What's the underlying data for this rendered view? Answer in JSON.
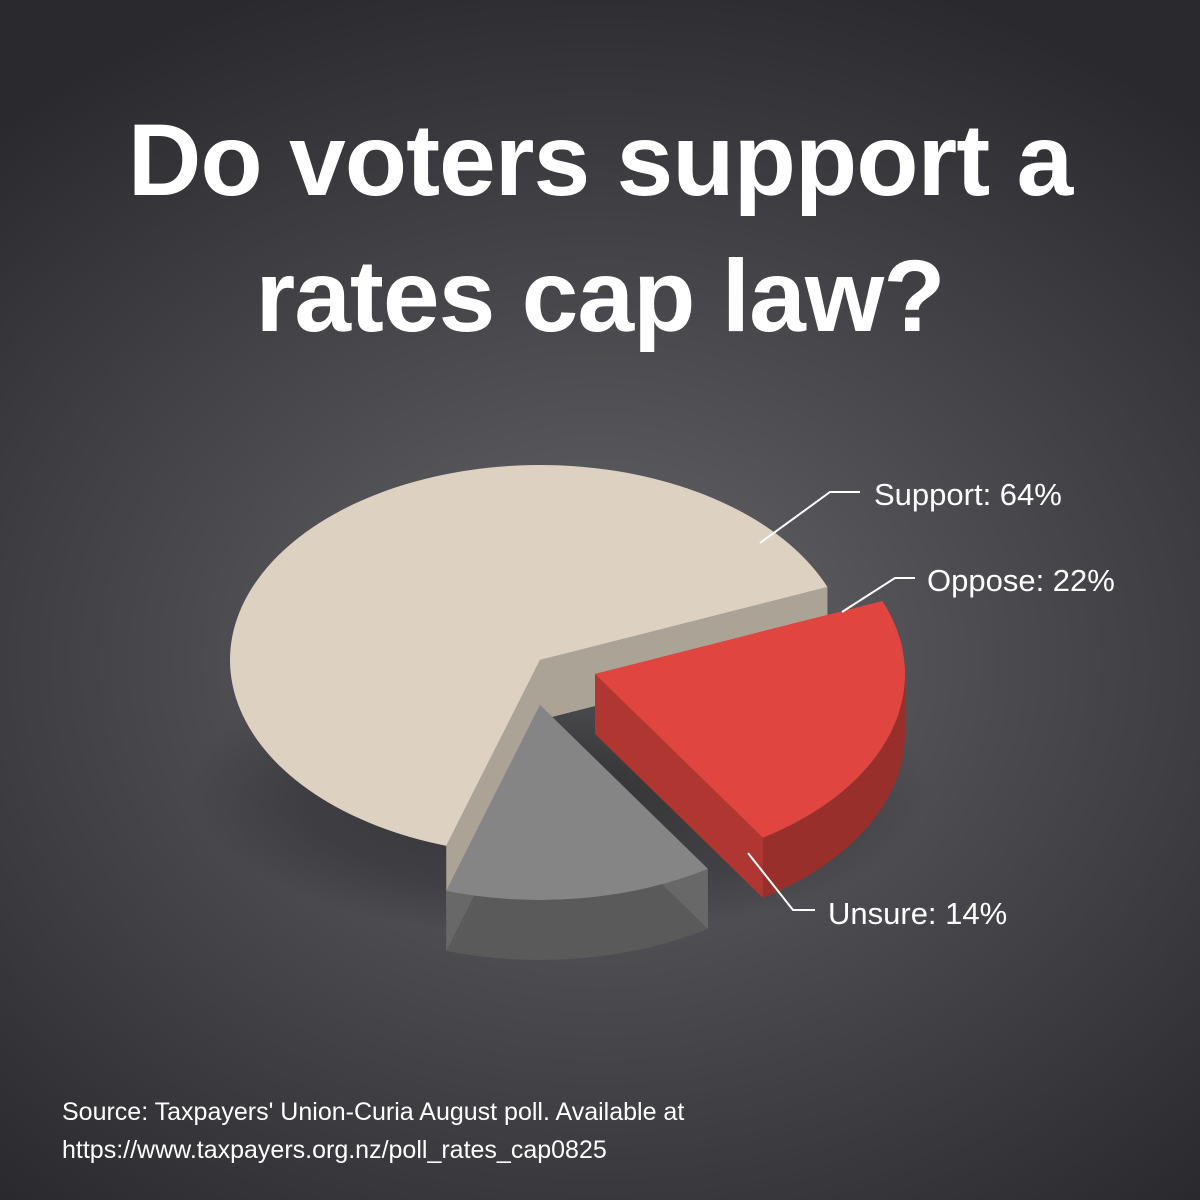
{
  "title": {
    "line1": "Do voters support a",
    "line2": "rates cap law?"
  },
  "chart_data": {
    "type": "pie",
    "title": "Do voters support a rates cap law?",
    "slices": [
      {
        "label": "Support: 64%",
        "name": "Support",
        "value": 64,
        "color": "#ddd1c2"
      },
      {
        "label": "Oppose: 22%",
        "name": "Oppose",
        "value": 22,
        "color": "#e0453f"
      },
      {
        "label": "Unsure: 14%",
        "name": "Unsure",
        "value": 14,
        "color": "#858585"
      }
    ]
  },
  "source": {
    "line1": "Source: Taxpayers' Union-Curia August poll. Available at",
    "line2": "https://www.taxpayers.org.nz/poll_rates_cap0825"
  }
}
